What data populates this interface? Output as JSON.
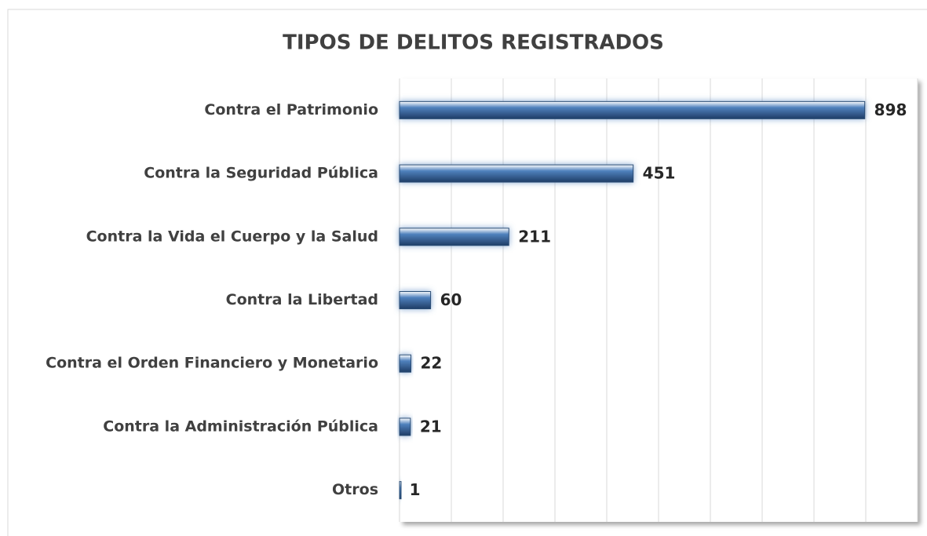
{
  "chart_data": {
    "type": "bar",
    "orientation": "horizontal",
    "title": "TIPOS DE DELITOS REGISTRADOS",
    "categories": [
      "Contra el Patrimonio",
      "Contra la Seguridad Pública",
      "Contra la Vida el Cuerpo y la Salud",
      "Contra la Libertad",
      "Contra el Orden Financiero y Monetario",
      "Contra la Administración Pública",
      "Otros"
    ],
    "values": [
      898,
      451,
      211,
      60,
      22,
      21,
      1
    ],
    "color": "#4f81bd",
    "xlim": [
      0,
      1000
    ],
    "xticks": [
      0,
      100,
      200,
      300,
      400,
      500,
      600,
      700,
      800,
      900,
      1000
    ],
    "grid": true
  }
}
